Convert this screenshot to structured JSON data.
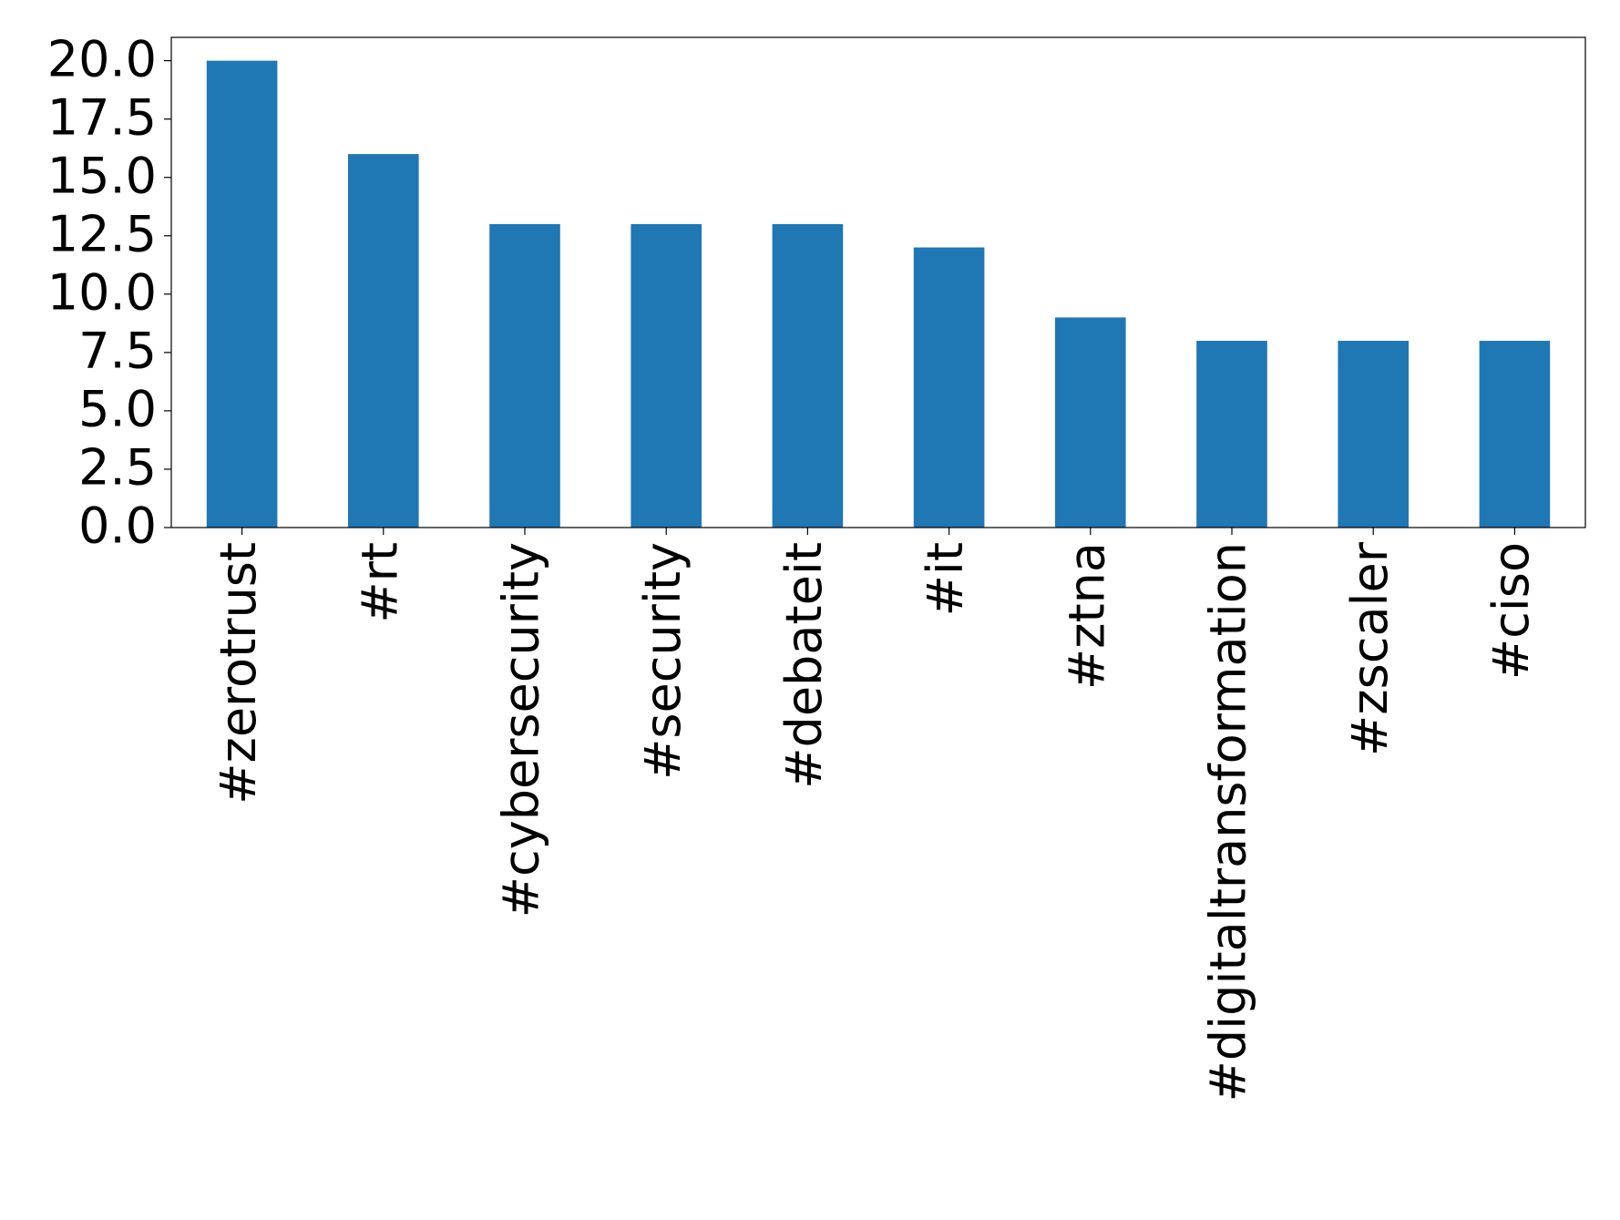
{
  "chart_data": {
    "type": "bar",
    "categories": [
      "#zerotrust",
      "#rt",
      "#cybersecurity",
      "#security",
      "#debateit",
      "#it",
      "#ztna",
      "#digitaltransformation",
      "#zscaler",
      "#ciso"
    ],
    "values": [
      20,
      16,
      13,
      13,
      13,
      12,
      9,
      8,
      8,
      8
    ],
    "color": "#1f77b4",
    "ylim": [
      0,
      21
    ],
    "yticks": [
      {
        "value": 0,
        "label": "0.0"
      },
      2.5,
      {
        "value": 5,
        "label": "5.0"
      },
      7.5,
      {
        "value": 10,
        "label": "10.0"
      },
      12.5,
      {
        "value": 15,
        "label": "15.0"
      },
      17.5,
      {
        "value": 20,
        "label": "20.0"
      }
    ],
    "grid": false
  }
}
